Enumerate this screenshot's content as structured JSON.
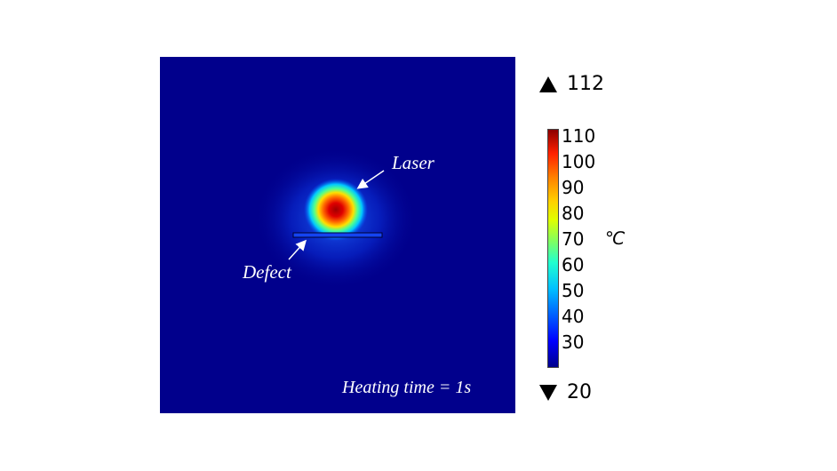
{
  "annotations": {
    "laser": "Laser",
    "defect": "Defect",
    "time": "Heating time = 1s"
  },
  "colorbar": {
    "max_label": "112",
    "min_label": "20",
    "ticks": [
      "110",
      "100",
      "90",
      "80",
      "70",
      "60",
      "50",
      "40",
      "30"
    ],
    "unit": "℃"
  },
  "colors": {
    "background_field": "#01008c",
    "hot": "#8c0000",
    "cold": "#00008c"
  }
}
